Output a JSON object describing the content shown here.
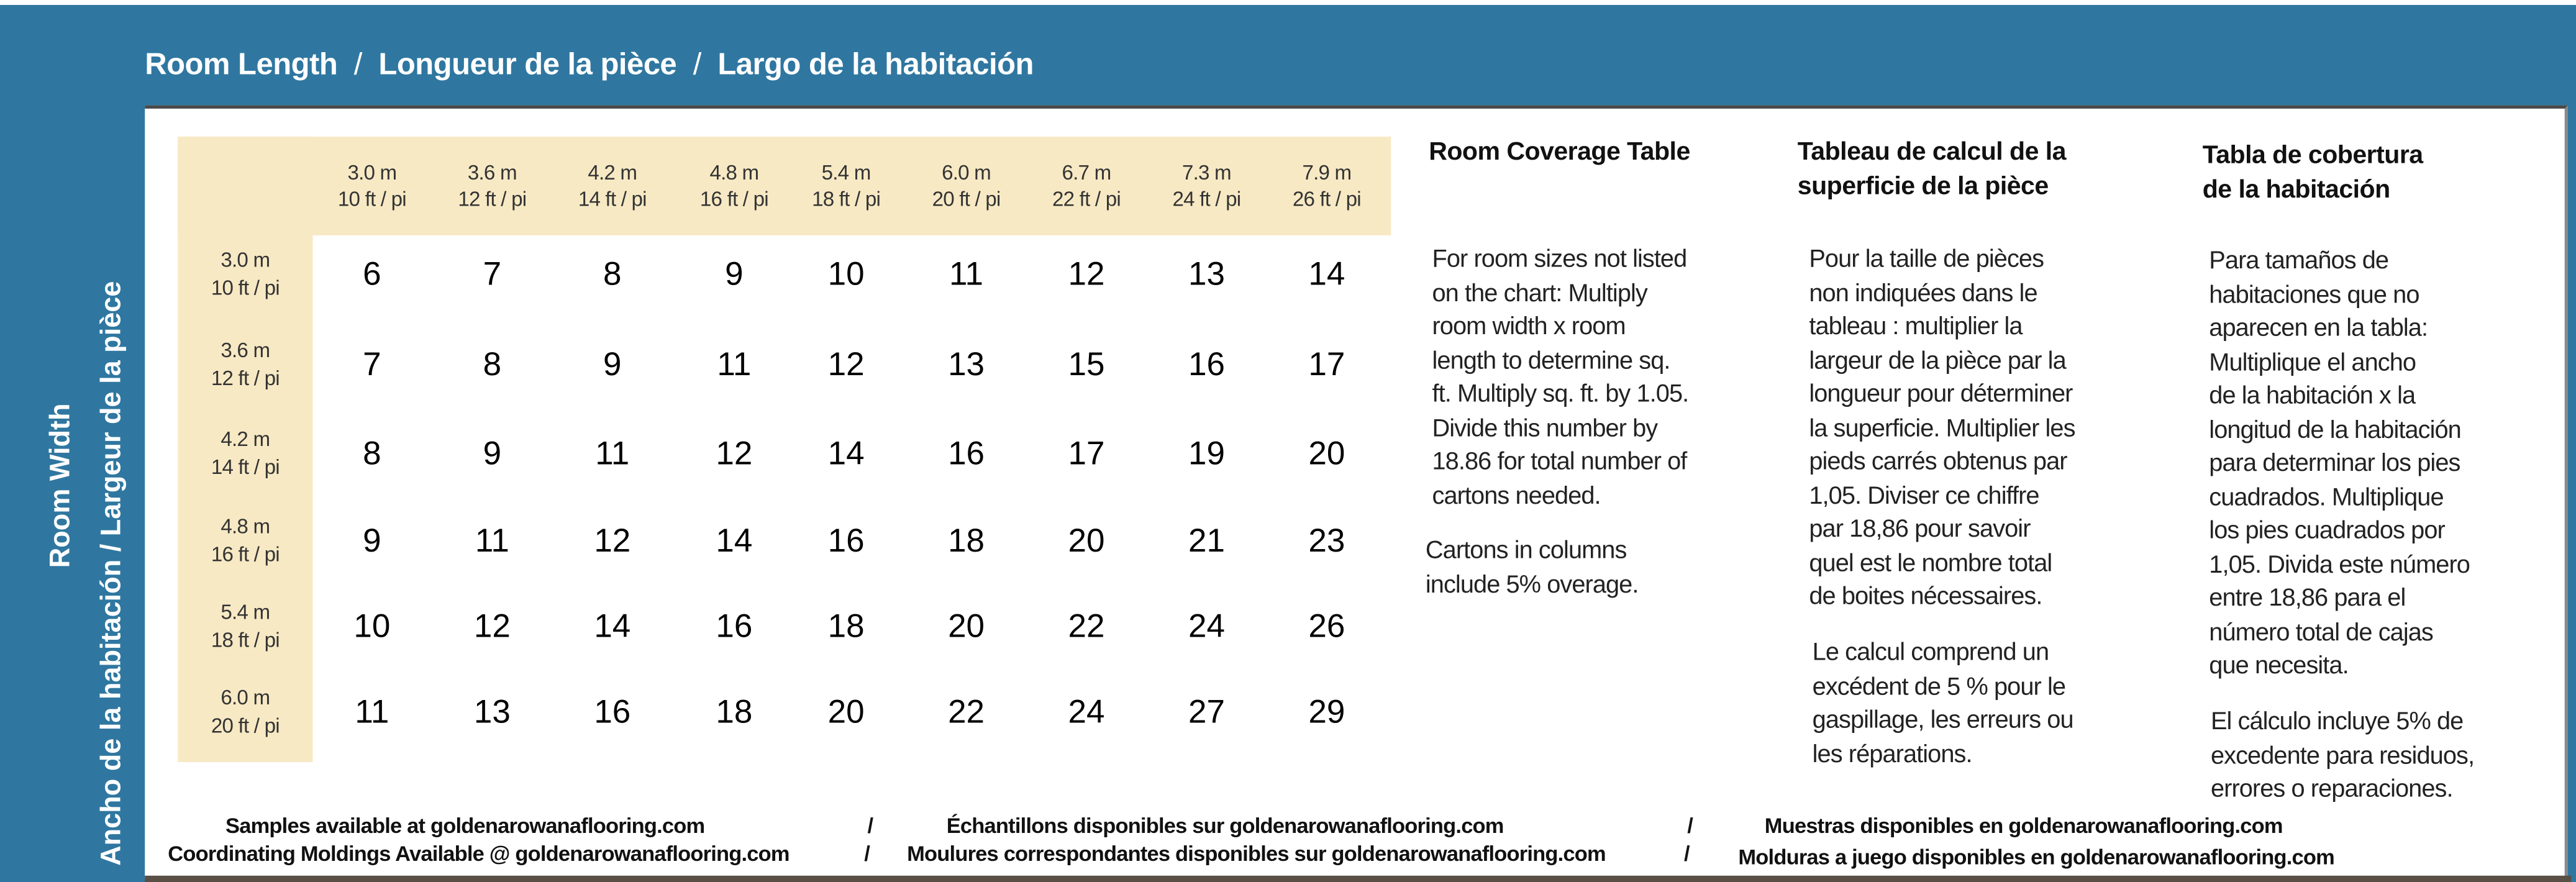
{
  "colors": {
    "frame_blue": "#2f77a0",
    "header_beige": "#f7e9c4"
  },
  "title": {
    "en": "Room Length",
    "fr": "Longueur de la pièce",
    "es": "Largo de la habitación",
    "separator": "/"
  },
  "side": {
    "line1": "Room Width",
    "line2": "Ancho de la habitación  /  Largeur de la pièce"
  },
  "columns": [
    {
      "m": "3.0 m",
      "ft": "10 ft / pi"
    },
    {
      "m": "3.6 m",
      "ft": "12 ft / pi"
    },
    {
      "m": "4.2 m",
      "ft": "14 ft / pi"
    },
    {
      "m": "4.8 m",
      "ft": "16 ft / pi"
    },
    {
      "m": "5.4 m",
      "ft": "18 ft / pi"
    },
    {
      "m": "6.0 m",
      "ft": "20 ft / pi"
    },
    {
      "m": "6.7 m",
      "ft": "22 ft / pi"
    },
    {
      "m": "7.3 m",
      "ft": "24 ft / pi"
    },
    {
      "m": "7.9 m",
      "ft": "26 ft / pi"
    }
  ],
  "rows": [
    {
      "m": "3.0 m",
      "ft": "10 ft / pi",
      "values": [
        "6",
        "7",
        "8",
        "9",
        "10",
        "11",
        "12",
        "13",
        "14"
      ]
    },
    {
      "m": "3.6 m",
      "ft": "12 ft / pi",
      "values": [
        "7",
        "8",
        "9",
        "11",
        "12",
        "13",
        "15",
        "16",
        "17"
      ]
    },
    {
      "m": "4.2 m",
      "ft": "14 ft / pi",
      "values": [
        "8",
        "9",
        "11",
        "12",
        "14",
        "16",
        "17",
        "19",
        "20"
      ]
    },
    {
      "m": "4.8 m",
      "ft": "16 ft / pi",
      "values": [
        "9",
        "11",
        "12",
        "14",
        "16",
        "18",
        "20",
        "21",
        "23"
      ]
    },
    {
      "m": "5.4 m",
      "ft": "18 ft / pi",
      "values": [
        "10",
        "12",
        "14",
        "16",
        "18",
        "20",
        "22",
        "24",
        "26"
      ]
    },
    {
      "m": "6.0 m",
      "ft": "20 ft / pi",
      "values": [
        "11",
        "13",
        "16",
        "18",
        "20",
        "22",
        "24",
        "27",
        "29"
      ]
    }
  ],
  "info": {
    "en": {
      "heading": [
        "Room Coverage Table"
      ],
      "p1": [
        "For room sizes not listed",
        "on the chart: Multiply",
        "room width x room",
        "length to determine sq.",
        "ft. Multiply sq. ft. by 1.05.",
        "Divide this number by",
        "18.86 for total number of",
        "cartons needed."
      ],
      "p2": [
        "Cartons in columns",
        "include 5% overage."
      ]
    },
    "fr": {
      "heading": [
        "Tableau de calcul de la",
        "superficie de la pièce"
      ],
      "p1": [
        "Pour la taille de pièces",
        "non indiquées dans le",
        "tableau :  multiplier la",
        "largeur de la pièce par la",
        "longueur pour déterminer",
        "la superficie. Multiplier les",
        "pieds carrés obtenus par",
        "1,05. Diviser ce chiffre",
        "par 18,86  pour savoir",
        "quel est le nombre total",
        "de boites nécessaires."
      ],
      "p2": [
        "Le calcul comprend un",
        "excédent de 5 % pour le",
        "gaspillage, les erreurs ou",
        "les réparations."
      ]
    },
    "es": {
      "heading": [
        "Tabla de cobertura",
        "de la habitación"
      ],
      "p1": [
        "Para tamaños de",
        "habitaciones que no",
        "aparecen en la tabla:",
        "Multiplique el ancho",
        "de la habitación x la",
        "longitud de la habitación",
        "para determinar los pies",
        "cuadrados. Multiplique",
        "los pies cuadrados por",
        "1,05. Divida este número",
        "entre 18,86  para el",
        "número total de cajas",
        "que necesita."
      ],
      "p2": [
        "El cálculo incluye 5% de",
        "excedente para residuos,",
        "errores o reparaciones."
      ]
    }
  },
  "footer": {
    "samples": [
      "Samples available at goldenarowanaflooring.com",
      "Échantillons disponibles sur goldenarowanaflooring.com",
      "Muestras disponibles en goldenarowanaflooring.com"
    ],
    "moldings": [
      "Coordinating Moldings Available @ goldenarowanaflooring.com",
      "Moulures correspondantes disponibles sur goldenarowanaflooring.com",
      "Molduras a juego disponibles en goldenarowanaflooring.com"
    ],
    "separator": "/"
  }
}
